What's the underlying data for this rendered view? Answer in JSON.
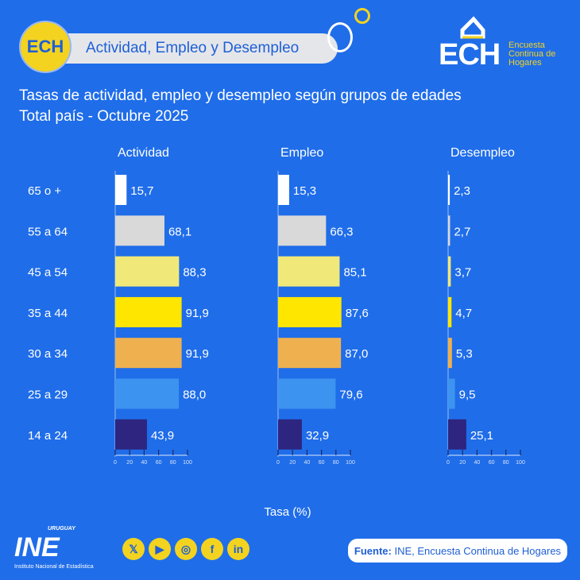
{
  "header": {
    "badge": "ECH",
    "title": "Actividad, Empleo y Desempleo",
    "logo": "ECH",
    "logo_sub": "Encuesta Continua de Hogares"
  },
  "chart_data": {
    "type": "bar",
    "title": "Tasas de actividad, empleo y desempleo según grupos de edades",
    "subtitle": "Total país - Octubre 2025",
    "xlabel": "Tasa (%)",
    "xlim": [
      0,
      100
    ],
    "ticks": [
      "0",
      "20",
      "40",
      "60",
      "80",
      "100"
    ],
    "categories": [
      "65 o +",
      "55 a 64",
      "45 a 54",
      "35 a 44",
      "30 a 34",
      "25 a 29",
      "14 a 24"
    ],
    "colors": [
      "#ffffff",
      "#d9d9d9",
      "#f0e97a",
      "#ffe600",
      "#efb050",
      "#3d94f0",
      "#2d2580"
    ],
    "panels": [
      {
        "name": "Actividad",
        "values": [
          15.7,
          68.1,
          88.3,
          91.9,
          91.9,
          88.0,
          43.9
        ],
        "labels": [
          "15,7",
          "68,1",
          "88,3",
          "91,9",
          "91,9",
          "88,0",
          "43,9"
        ]
      },
      {
        "name": "Empleo",
        "values": [
          15.3,
          66.3,
          85.1,
          87.6,
          87.0,
          79.6,
          32.9
        ],
        "labels": [
          "15,3",
          "66,3",
          "85,1",
          "87,6",
          "87,0",
          "79,6",
          "32,9"
        ]
      },
      {
        "name": "Desempleo",
        "values": [
          2.3,
          2.7,
          3.7,
          4.7,
          5.3,
          9.5,
          25.1
        ],
        "labels": [
          "2,3",
          "2,7",
          "3,7",
          "4,7",
          "5,3",
          "9,5",
          "25,1"
        ]
      }
    ]
  },
  "footer": {
    "ine": "INE",
    "ine_top": "URUGUAY",
    "ine_sub": "Instituto Nacional de Estadística",
    "fuente_label": "Fuente:",
    "fuente_text": " INE, Encuesta Continua de Hogares",
    "social": [
      "x-icon",
      "youtube-icon",
      "instagram-icon",
      "facebook-icon",
      "linkedin-icon"
    ]
  }
}
